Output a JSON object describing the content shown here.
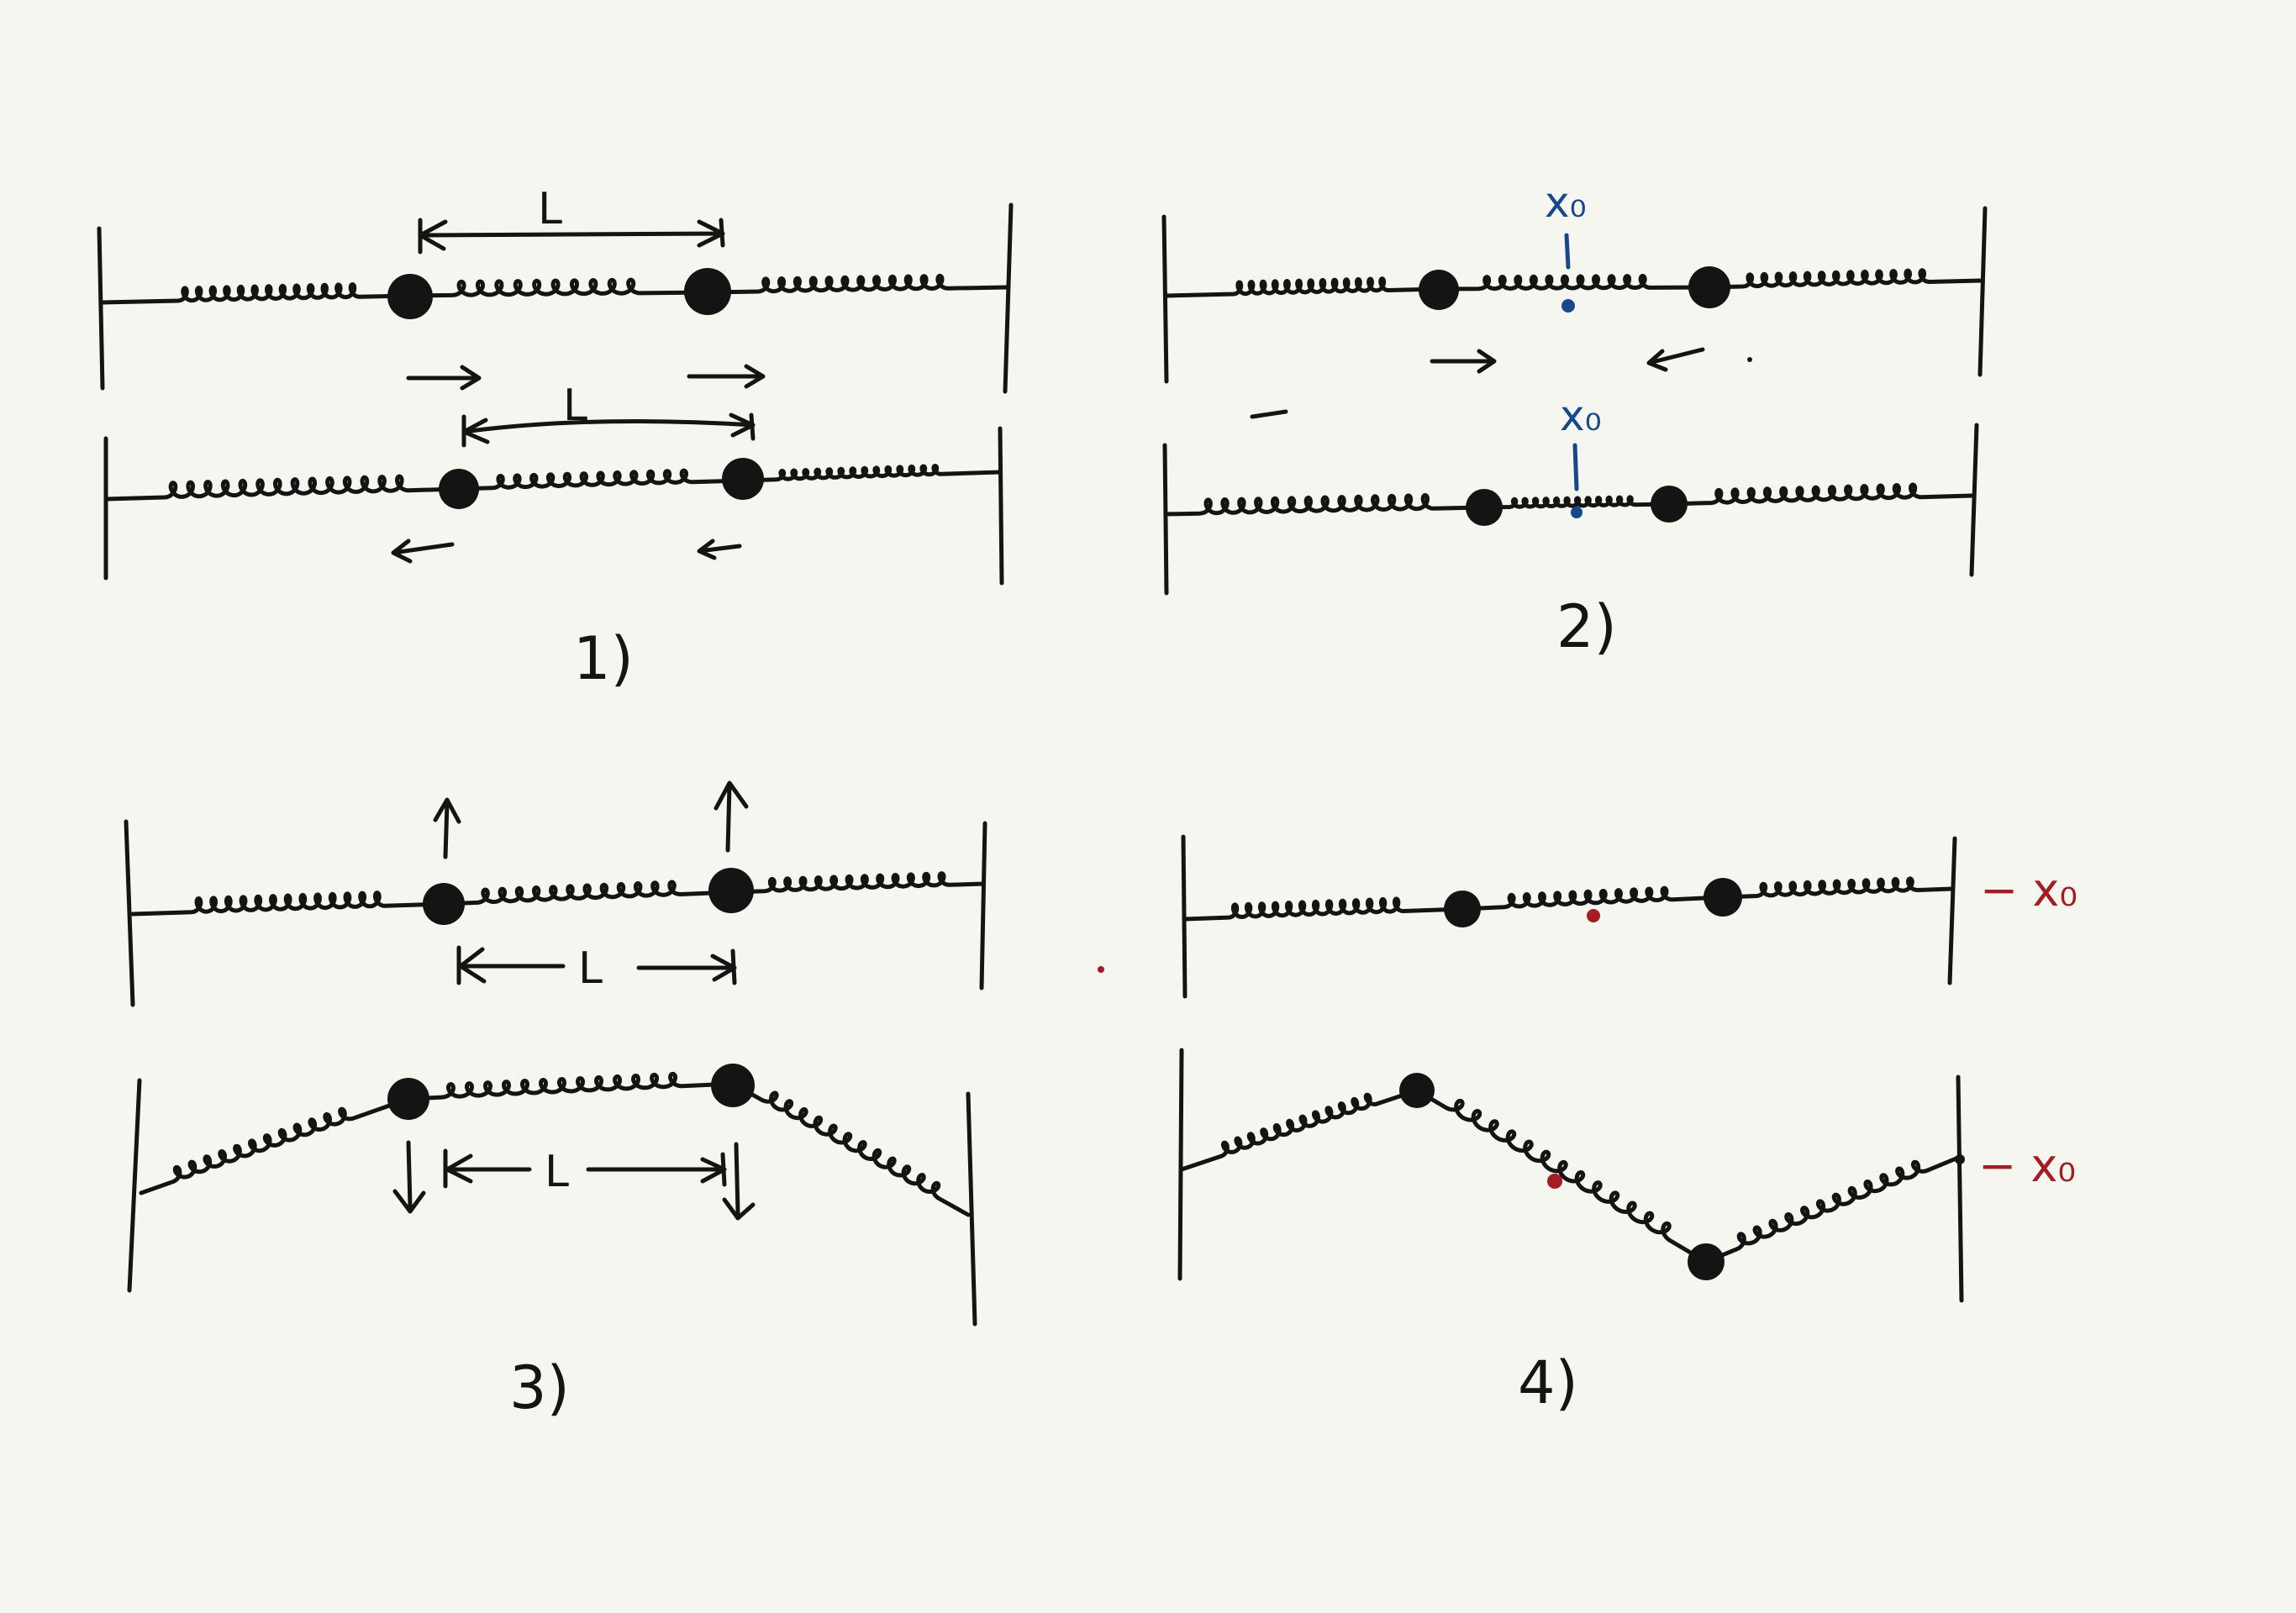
{
  "colors": {
    "background": "#f6f6f1",
    "ink": "#141414",
    "blue": "#17498a",
    "red": "#a41d23"
  },
  "panels": [
    {
      "number": "1)",
      "length_label_top": "L",
      "length_label_bottom": "L"
    },
    {
      "number": "2)",
      "point_label_top": "x₀",
      "point_label_bottom": "x₀"
    },
    {
      "number": "3)",
      "length_label_top": "L",
      "length_label_bottom": "L"
    },
    {
      "number": "4)",
      "wall_label_top": "− x₀",
      "wall_label_bottom": "− x₀"
    }
  ]
}
